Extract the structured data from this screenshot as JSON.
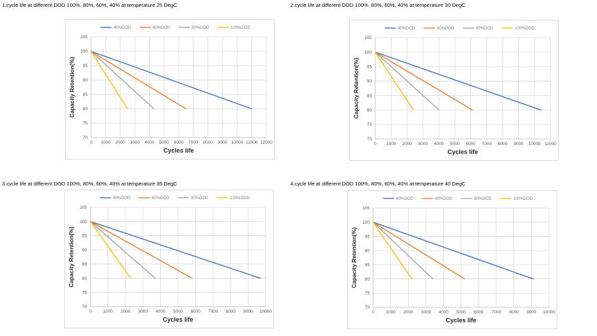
{
  "colors": {
    "40%DOD": "#4472c4",
    "60%DOD": "#ed7d31",
    "80%DOD": "#a5a5a5",
    "100%DOD": "#ffc000"
  },
  "chart_data": [
    {
      "type": "line",
      "title": "1.cycle life at different DOD 100%, 80%, 60%, 40% at temperature 25 DegC",
      "xlabel": "Cycles life",
      "ylabel": "Capacity Retention(%)",
      "xlim": [
        0,
        12000
      ],
      "xticks": [
        0,
        1000,
        2000,
        3000,
        4000,
        5000,
        6000,
        7000,
        8000,
        9000,
        10000,
        11000,
        12000
      ],
      "ylim": [
        70,
        105
      ],
      "yticks": [
        70,
        75,
        80,
        85,
        90,
        95,
        100,
        105
      ],
      "grid": true,
      "legend": "top",
      "series": [
        {
          "name": "40%DOD",
          "x": [
            0,
            11000
          ],
          "y": [
            100,
            80
          ]
        },
        {
          "name": "60%DOD",
          "x": [
            0,
            6500
          ],
          "y": [
            100,
            80
          ]
        },
        {
          "name": "80%DOD",
          "x": [
            0,
            4300
          ],
          "y": [
            100,
            80
          ]
        },
        {
          "name": "100%DOD",
          "x": [
            0,
            2500
          ],
          "y": [
            100,
            80
          ]
        }
      ]
    },
    {
      "type": "line",
      "title": "2.cycle life at different DOD 100%, 80%, 60%, 40% at temperature 30 DegC",
      "xlabel": "Cycles life",
      "ylabel": "Capacity Retention(%)",
      "xlim": [
        0,
        11000
      ],
      "xticks": [
        0,
        1000,
        2000,
        3000,
        4000,
        5000,
        6000,
        7000,
        8000,
        9000,
        10000,
        11000
      ],
      "ylim": [
        70,
        105
      ],
      "yticks": [
        70,
        75,
        80,
        85,
        90,
        95,
        100,
        105
      ],
      "grid": true,
      "legend": "top",
      "series": [
        {
          "name": "40%DOD",
          "x": [
            0,
            10400
          ],
          "y": [
            100,
            80
          ]
        },
        {
          "name": "60%DOD",
          "x": [
            0,
            6100
          ],
          "y": [
            100,
            80
          ]
        },
        {
          "name": "80%DOD",
          "x": [
            0,
            4000
          ],
          "y": [
            100,
            80
          ]
        },
        {
          "name": "100%DOD",
          "x": [
            0,
            2400
          ],
          "y": [
            100,
            80
          ]
        }
      ]
    },
    {
      "type": "line",
      "title": "3.cycle life at different DOD 100%, 80%, 60%, 40% at temperature 35 DegC",
      "xlabel": "Cycles life",
      "ylabel": "Capacity Retention(%)",
      "xlim": [
        0,
        10000
      ],
      "xticks": [
        0,
        1000,
        2000,
        3000,
        4000,
        5000,
        6000,
        7000,
        8000,
        9000,
        10000
      ],
      "ylim": [
        70,
        105
      ],
      "yticks": [
        70,
        75,
        80,
        85,
        90,
        95,
        100,
        105
      ],
      "grid": true,
      "legend": "top",
      "series": [
        {
          "name": "40%DOD",
          "x": [
            0,
            9700
          ],
          "y": [
            100,
            80
          ]
        },
        {
          "name": "60%DOD",
          "x": [
            0,
            5800
          ],
          "y": [
            100,
            80
          ]
        },
        {
          "name": "80%DOD",
          "x": [
            0,
            3700
          ],
          "y": [
            100,
            80
          ]
        },
        {
          "name": "100%DOD",
          "x": [
            0,
            2300
          ],
          "y": [
            100,
            80
          ]
        }
      ]
    },
    {
      "type": "line",
      "title": "4.cycle life at different DOD 100%, 80%, 60%, 40% at temperature 40 DegC",
      "xlabel": "Cycles life",
      "ylabel": "Capacity Retention(%)",
      "xlim": [
        0,
        10000
      ],
      "xticks": [
        0,
        1000,
        2000,
        3000,
        4000,
        5000,
        6000,
        7000,
        8000,
        9000,
        10000
      ],
      "ylim": [
        70,
        105
      ],
      "yticks": [
        70,
        75,
        80,
        85,
        90,
        95,
        100,
        105
      ],
      "grid": true,
      "legend": "top",
      "series": [
        {
          "name": "40%DOD",
          "x": [
            0,
            9100
          ],
          "y": [
            100,
            80
          ]
        },
        {
          "name": "60%DOD",
          "x": [
            0,
            5200
          ],
          "y": [
            100,
            80
          ]
        },
        {
          "name": "80%DOD",
          "x": [
            0,
            3400
          ],
          "y": [
            100,
            80
          ]
        },
        {
          "name": "100%DOD",
          "x": [
            0,
            2200
          ],
          "y": [
            100,
            80
          ]
        }
      ]
    }
  ]
}
